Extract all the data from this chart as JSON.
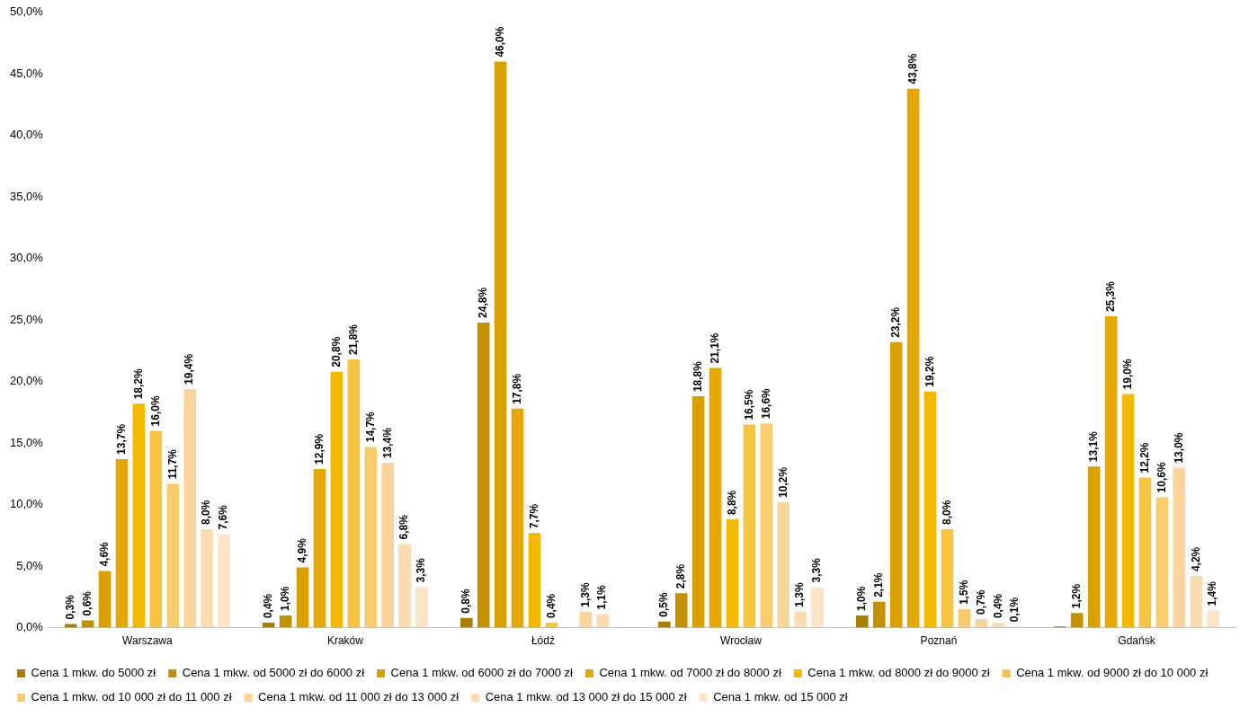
{
  "chart_data": {
    "type": "bar",
    "categories": [
      "Warszawa",
      "Kraków",
      "Łódź",
      "Wrocław",
      "Poznań",
      "Gdańsk"
    ],
    "series": [
      {
        "name": "Cena 1 mkw. do 5000 zł",
        "color": "#a88000",
        "values": [
          0.3,
          0.4,
          0.8,
          0.5,
          1.0,
          0.1
        ],
        "value_labels": [
          "0,3%",
          "0,4%",
          "0,8%",
          "0,5%",
          "1,0%",
          null
        ]
      },
      {
        "name": "Cena 1 mkw. od 5000 zł do 6000 zł",
        "color": "#c39200",
        "values": [
          0.6,
          1.0,
          24.8,
          2.8,
          2.1,
          1.2
        ],
        "value_labels": [
          "0,6%",
          "1,0%",
          "24,8%",
          "2,8%",
          "2,1%",
          "1,2%"
        ]
      },
      {
        "name": "Cena 1 mkw. od 6000 zł do 7000 zł",
        "color": "#d9a000",
        "values": [
          4.6,
          4.9,
          46.0,
          18.8,
          23.2,
          13.1
        ],
        "value_labels": [
          "4,6%",
          "4,9%",
          "46,0%",
          "18,8%",
          "23,2%",
          "13,1%"
        ]
      },
      {
        "name": "Cena 1 mkw. od 7000 zł do 8000 zł",
        "color": "#e6a800",
        "values": [
          13.7,
          12.9,
          17.8,
          21.1,
          43.8,
          25.3
        ],
        "value_labels": [
          "13,7%",
          "12,9%",
          "17,8%",
          "21,1%",
          "43,8%",
          "25,3%"
        ]
      },
      {
        "name": "Cena 1 mkw. od 8000 zł do 9000 zł",
        "color": "#f5b800",
        "values": [
          18.2,
          20.8,
          7.7,
          8.8,
          19.2,
          19.0
        ],
        "value_labels": [
          "18,2%",
          "20,8%",
          "7,7%",
          "8,8%",
          "19,2%",
          "19,0%"
        ]
      },
      {
        "name": "Cena 1 mkw. od 9000 zł do 10 000 zł",
        "color": "#f7c442",
        "values": [
          16.0,
          21.8,
          0.4,
          16.5,
          8.0,
          12.2
        ],
        "value_labels": [
          "16,0%",
          "21,8%",
          "0,4%",
          "16,5%",
          "8,0%",
          "12,2%"
        ]
      },
      {
        "name": "Cena 1 mkw. od 10 000 zł do 11 000 zł",
        "color": "#f9cc70",
        "values": [
          11.7,
          14.7,
          null,
          16.6,
          1.5,
          10.6
        ],
        "value_labels": [
          "11,7%",
          "14,7%",
          null,
          "16,6%",
          "1,5%",
          "10,6%"
        ]
      },
      {
        "name": "Cena 1 mkw. od 11 000 zł do 13 000 zł",
        "color": "#fad49a",
        "values": [
          19.4,
          13.4,
          1.3,
          10.2,
          0.7,
          13.0
        ],
        "value_labels": [
          "19,4%",
          "13,4%",
          "1,3%",
          "10,2%",
          "0,7%",
          "13,0%"
        ]
      },
      {
        "name": "Cena 1 mkw. od 13 000 zł do 15 000 zł",
        "color": "#fbdcb2",
        "values": [
          8.0,
          6.8,
          1.1,
          1.3,
          0.4,
          4.2
        ],
        "value_labels": [
          "8,0%",
          "6,8%",
          "1,1%",
          "1,3%",
          "0,4%",
          "4,2%"
        ]
      },
      {
        "name": "Cena 1 mkw. od 15 000 zł",
        "color": "#fce4c6",
        "values": [
          7.6,
          3.3,
          null,
          3.3,
          0.1,
          1.4
        ],
        "value_labels": [
          "7,6%",
          "3,3%",
          null,
          "3,3%",
          "0,1%",
          "1,4%"
        ]
      }
    ],
    "ylim": [
      0,
      50
    ],
    "yticks": [
      {
        "value": 0,
        "label": "0,0%"
      },
      {
        "value": 5,
        "label": "5,0%"
      },
      {
        "value": 10,
        "label": "10,0%"
      },
      {
        "value": 15,
        "label": "15,0%"
      },
      {
        "value": 20,
        "label": "20,0%"
      },
      {
        "value": 25,
        "label": "25,0%"
      },
      {
        "value": 30,
        "label": "30,0%"
      },
      {
        "value": 35,
        "label": "35,0%"
      },
      {
        "value": 40,
        "label": "40,0%"
      },
      {
        "value": 45,
        "label": "45,0%"
      },
      {
        "value": 50,
        "label": "50,0%"
      }
    ],
    "grid": false,
    "legend": "bottom"
  }
}
